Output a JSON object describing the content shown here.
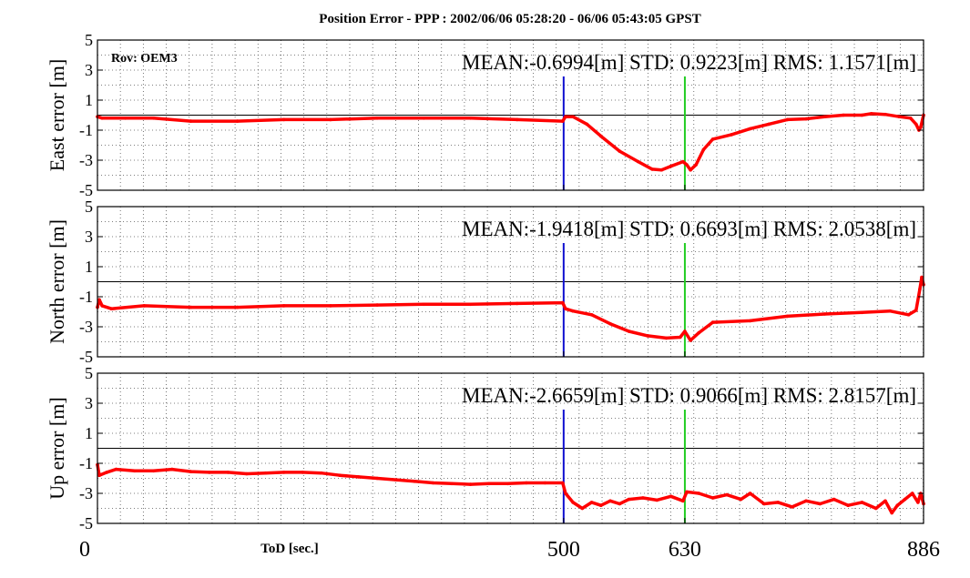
{
  "chart_data": {
    "title": "Position Error - PPP : 2002/06/06 05:28:20 - 06/06 05:43:05 GPST",
    "xlabel": "ToD [sec.]",
    "xlim": [
      0,
      886
    ],
    "xticks": [
      "0",
      "500",
      "630",
      "886"
    ],
    "x_tick_values": [
      0,
      500,
      630,
      886
    ],
    "markers": [
      {
        "x": 500,
        "color": "#1010d0"
      },
      {
        "x": 630,
        "color": "#22cc22"
      }
    ],
    "series_color": "#ff0000",
    "panels": [
      {
        "type": "line",
        "ylabel": "East error [m]",
        "ylim": [
          -5,
          5
        ],
        "yticks": [
          "5",
          "3",
          "1",
          "-1",
          "-3",
          "-5"
        ],
        "stats_text": "MEAN:-0.6994[m]  STD: 0.9223[m]  RMS: 1.1571[m]",
        "rover_label": "Rov: OEM3",
        "points": [
          [
            0,
            -0.1
          ],
          [
            5,
            -0.2
          ],
          [
            30,
            -0.2
          ],
          [
            60,
            -0.2
          ],
          [
            100,
            -0.4
          ],
          [
            150,
            -0.4
          ],
          [
            200,
            -0.3
          ],
          [
            250,
            -0.3
          ],
          [
            300,
            -0.2
          ],
          [
            350,
            -0.2
          ],
          [
            400,
            -0.2
          ],
          [
            450,
            -0.3
          ],
          [
            499,
            -0.4
          ],
          [
            502,
            -0.1
          ],
          [
            510,
            -0.1
          ],
          [
            525,
            -0.6
          ],
          [
            540,
            -1.4
          ],
          [
            560,
            -2.4
          ],
          [
            580,
            -3.1
          ],
          [
            595,
            -3.6
          ],
          [
            605,
            -3.65
          ],
          [
            615,
            -3.4
          ],
          [
            628,
            -3.1
          ],
          [
            632,
            -3.3
          ],
          [
            636,
            -3.65
          ],
          [
            642,
            -3.3
          ],
          [
            650,
            -2.3
          ],
          [
            660,
            -1.6
          ],
          [
            680,
            -1.3
          ],
          [
            700,
            -0.9
          ],
          [
            720,
            -0.6
          ],
          [
            740,
            -0.3
          ],
          [
            760,
            -0.25
          ],
          [
            780,
            -0.1
          ],
          [
            800,
            0.0
          ],
          [
            820,
            0.0
          ],
          [
            830,
            0.1
          ],
          [
            845,
            0.05
          ],
          [
            860,
            -0.1
          ],
          [
            872,
            -0.2
          ],
          [
            878,
            -0.6
          ],
          [
            881,
            -1.0
          ],
          [
            883,
            -0.8
          ],
          [
            886,
            0.0
          ]
        ]
      },
      {
        "type": "line",
        "ylabel": "North error [m]",
        "ylim": [
          -5,
          5
        ],
        "yticks": [
          "5",
          "3",
          "1",
          "-1",
          "-3",
          "-5"
        ],
        "stats_text": "MEAN:-1.9418[m]  STD: 0.6693[m]  RMS: 2.0538[m]",
        "rover_label": "",
        "points": [
          [
            0,
            -1.7
          ],
          [
            2,
            -1.2
          ],
          [
            5,
            -1.6
          ],
          [
            15,
            -1.8
          ],
          [
            50,
            -1.6
          ],
          [
            100,
            -1.7
          ],
          [
            150,
            -1.7
          ],
          [
            200,
            -1.6
          ],
          [
            250,
            -1.6
          ],
          [
            300,
            -1.55
          ],
          [
            350,
            -1.5
          ],
          [
            400,
            -1.5
          ],
          [
            450,
            -1.45
          ],
          [
            499,
            -1.4
          ],
          [
            502,
            -1.8
          ],
          [
            510,
            -1.95
          ],
          [
            530,
            -2.2
          ],
          [
            550,
            -2.8
          ],
          [
            570,
            -3.3
          ],
          [
            590,
            -3.6
          ],
          [
            610,
            -3.75
          ],
          [
            625,
            -3.7
          ],
          [
            630,
            -3.3
          ],
          [
            636,
            -3.9
          ],
          [
            645,
            -3.4
          ],
          [
            660,
            -2.7
          ],
          [
            700,
            -2.6
          ],
          [
            740,
            -2.3
          ],
          [
            780,
            -2.15
          ],
          [
            820,
            -2.05
          ],
          [
            850,
            -1.95
          ],
          [
            870,
            -2.2
          ],
          [
            878,
            -1.9
          ],
          [
            882,
            -0.5
          ],
          [
            884,
            0.3
          ],
          [
            886,
            -0.2
          ]
        ]
      },
      {
        "type": "line",
        "ylabel": "Up error [m]",
        "ylim": [
          -5,
          5
        ],
        "yticks": [
          "5",
          "3",
          "1",
          "-1",
          "-3",
          "-5"
        ],
        "stats_text": "MEAN:-2.6659[m]  STD: 0.9066[m]  RMS: 2.8157[m]",
        "rover_label": "",
        "points": [
          [
            0,
            -1.1
          ],
          [
            2,
            -1.8
          ],
          [
            10,
            -1.6
          ],
          [
            20,
            -1.4
          ],
          [
            40,
            -1.5
          ],
          [
            60,
            -1.5
          ],
          [
            80,
            -1.4
          ],
          [
            100,
            -1.55
          ],
          [
            120,
            -1.6
          ],
          [
            140,
            -1.6
          ],
          [
            160,
            -1.7
          ],
          [
            180,
            -1.65
          ],
          [
            200,
            -1.6
          ],
          [
            220,
            -1.6
          ],
          [
            240,
            -1.65
          ],
          [
            260,
            -1.8
          ],
          [
            280,
            -1.9
          ],
          [
            300,
            -2.0
          ],
          [
            320,
            -2.1
          ],
          [
            340,
            -2.2
          ],
          [
            360,
            -2.3
          ],
          [
            380,
            -2.35
          ],
          [
            400,
            -2.4
          ],
          [
            420,
            -2.35
          ],
          [
            440,
            -2.35
          ],
          [
            460,
            -2.3
          ],
          [
            480,
            -2.3
          ],
          [
            499,
            -2.3
          ],
          [
            502,
            -3.0
          ],
          [
            510,
            -3.6
          ],
          [
            520,
            -4.0
          ],
          [
            530,
            -3.6
          ],
          [
            540,
            -3.8
          ],
          [
            550,
            -3.5
          ],
          [
            560,
            -3.7
          ],
          [
            570,
            -3.4
          ],
          [
            585,
            -3.3
          ],
          [
            600,
            -3.45
          ],
          [
            615,
            -3.2
          ],
          [
            628,
            -3.5
          ],
          [
            632,
            -2.9
          ],
          [
            645,
            -3.0
          ],
          [
            660,
            -3.3
          ],
          [
            675,
            -3.1
          ],
          [
            690,
            -3.4
          ],
          [
            700,
            -3.0
          ],
          [
            715,
            -3.7
          ],
          [
            730,
            -3.6
          ],
          [
            745,
            -3.9
          ],
          [
            760,
            -3.5
          ],
          [
            775,
            -3.7
          ],
          [
            790,
            -3.4
          ],
          [
            805,
            -3.8
          ],
          [
            820,
            -3.6
          ],
          [
            835,
            -4.0
          ],
          [
            845,
            -3.5
          ],
          [
            852,
            -4.3
          ],
          [
            858,
            -3.8
          ],
          [
            866,
            -3.4
          ],
          [
            874,
            -3.0
          ],
          [
            880,
            -3.6
          ],
          [
            883,
            -3.0
          ],
          [
            886,
            -3.7
          ]
        ]
      }
    ]
  }
}
